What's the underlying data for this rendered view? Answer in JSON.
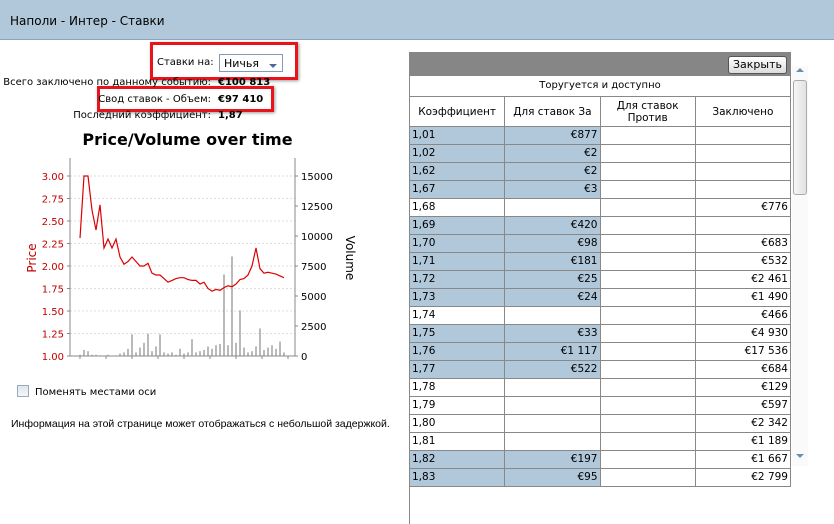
{
  "title": "Наполи - Интер - Ставки",
  "bets_on": {
    "label": "Ставки на:",
    "selected": "Ничья"
  },
  "stats": [
    {
      "label": "Всего заключено по данному событию:",
      "value": "€100 813"
    },
    {
      "label": "Свод ставок - Объем:",
      "value": "€97 410"
    },
    {
      "label": "Последний коэффициент:",
      "value": "1,87"
    }
  ],
  "swap_axes_label": "Поменять местами оси",
  "delay_note": "Информация на этой странице может отображаться с небольшой задержкой.",
  "colors": {
    "highlight": "#b0c8da",
    "price_line": "#dd0000",
    "volume_bars": "#8c8c8c",
    "header_bar": "#868686"
  },
  "chart_data": {
    "type": "line",
    "title": "Price/Volume over time",
    "ylabel": "Price",
    "y2label": "Volume",
    "ylim": [
      1.0,
      3.2
    ],
    "y2lim": [
      0,
      16500
    ],
    "yticks": [
      "1.00",
      "1.25",
      "1.50",
      "1.75",
      "2.00",
      "2.25",
      "2.50",
      "2.75",
      "3.00"
    ],
    "y2ticks": [
      "0",
      "2500",
      "5000",
      "7500",
      "10000",
      "12500",
      "15000"
    ],
    "grid": true,
    "series": [
      {
        "name": "Price",
        "type": "line",
        "values": [
          2.31,
          3.0,
          3.0,
          2.62,
          2.4,
          2.68,
          2.2,
          2.3,
          2.2,
          2.3,
          2.1,
          2.02,
          2.05,
          2.1,
          2.05,
          2.0,
          2.0,
          2.03,
          1.92,
          1.9,
          1.9,
          1.86,
          1.82,
          1.84,
          1.86,
          1.87,
          1.87,
          1.85,
          1.84,
          1.84,
          1.8,
          1.82,
          1.75,
          1.72,
          1.74,
          1.73,
          1.76,
          1.78,
          1.77,
          1.8,
          1.85,
          1.86,
          1.9,
          2.0,
          2.2,
          1.97,
          1.92,
          1.93,
          1.92,
          1.91,
          1.89,
          1.87
        ]
      },
      {
        "name": "Volume",
        "type": "bar",
        "values": [
          100,
          500,
          400,
          100,
          100,
          50,
          0,
          100,
          0,
          0,
          200,
          300,
          600,
          1800,
          300,
          700,
          1100,
          1850,
          400,
          800,
          1800,
          300,
          200,
          300,
          100,
          600,
          200,
          300,
          1400,
          300,
          400,
          500,
          800,
          600,
          900,
          1000,
          6800,
          900,
          8300,
          1100,
          3800,
          700,
          300,
          400,
          800,
          2300,
          500,
          700,
          900,
          600,
          1200,
          300
        ]
      }
    ]
  },
  "table": {
    "close_label": "Закрыть",
    "subtitle": "Торугуется и доступно",
    "columns": [
      "Коэффициент",
      "Для ставок За",
      "Для ставок Против",
      "Заключено"
    ],
    "rows": [
      {
        "odds": "1,01",
        "for": "€877",
        "against": "",
        "matched": ""
      },
      {
        "odds": "1,02",
        "for": "€2",
        "against": "",
        "matched": ""
      },
      {
        "odds": "1,62",
        "for": "€2",
        "against": "",
        "matched": ""
      },
      {
        "odds": "1,67",
        "for": "€3",
        "against": "",
        "matched": ""
      },
      {
        "odds": "1,68",
        "for": "",
        "against": "",
        "matched": "€776"
      },
      {
        "odds": "1,69",
        "for": "€420",
        "against": "",
        "matched": ""
      },
      {
        "odds": "1,70",
        "for": "€98",
        "against": "",
        "matched": "€683"
      },
      {
        "odds": "1,71",
        "for": "€181",
        "against": "",
        "matched": "€532"
      },
      {
        "odds": "1,72",
        "for": "€25",
        "against": "",
        "matched": "€2 461"
      },
      {
        "odds": "1,73",
        "for": "€24",
        "against": "",
        "matched": "€1 490"
      },
      {
        "odds": "1,74",
        "for": "",
        "against": "",
        "matched": "€466"
      },
      {
        "odds": "1,75",
        "for": "€33",
        "against": "",
        "matched": "€4 930"
      },
      {
        "odds": "1,76",
        "for": "€1 117",
        "against": "",
        "matched": "€17 536"
      },
      {
        "odds": "1,77",
        "for": "€522",
        "against": "",
        "matched": "€684"
      },
      {
        "odds": "1,78",
        "for": "",
        "against": "",
        "matched": "€129"
      },
      {
        "odds": "1,79",
        "for": "",
        "against": "",
        "matched": "€597"
      },
      {
        "odds": "1,80",
        "for": "",
        "against": "",
        "matched": "€2 342"
      },
      {
        "odds": "1,81",
        "for": "",
        "against": "",
        "matched": "€1 189"
      },
      {
        "odds": "1,82",
        "for": "€197",
        "against": "",
        "matched": "€1 667"
      },
      {
        "odds": "1,83",
        "for": "€95",
        "against": "",
        "matched": "€2 799"
      }
    ]
  }
}
